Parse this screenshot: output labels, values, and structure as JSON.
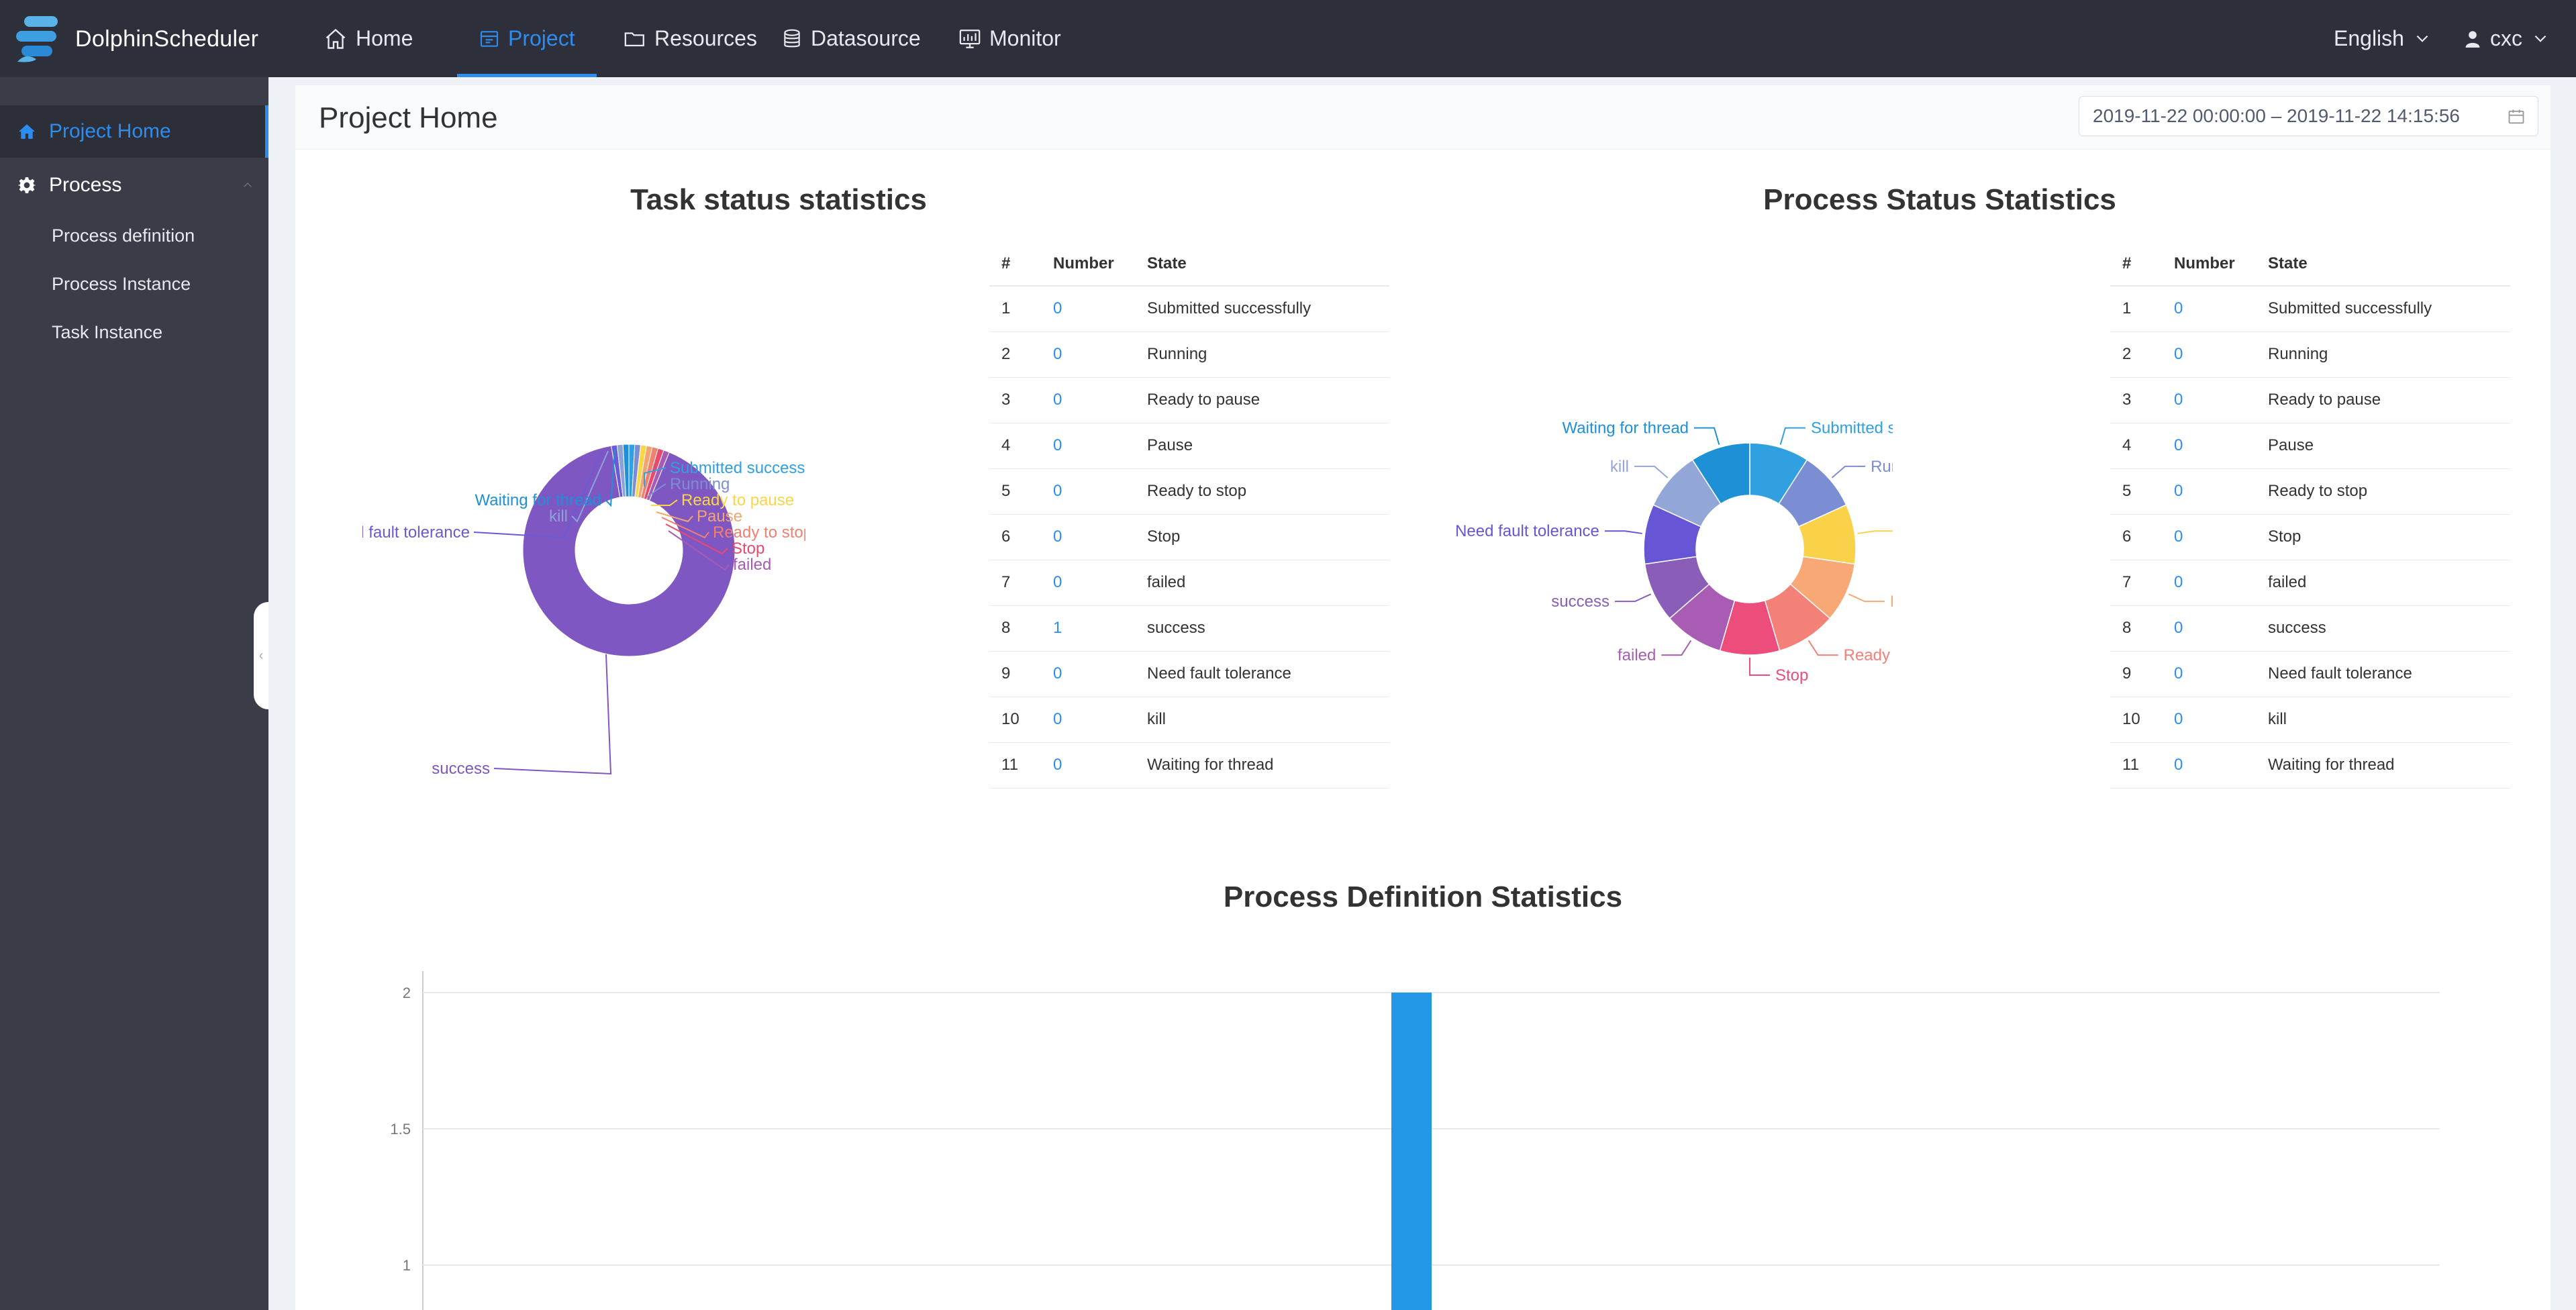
{
  "app": {
    "name": "DolphinScheduler"
  },
  "nav": {
    "items": [
      {
        "label": "Home",
        "icon": "home-icon"
      },
      {
        "label": "Project",
        "icon": "project-icon"
      },
      {
        "label": "Resources",
        "icon": "folder-icon"
      },
      {
        "label": "Datasource",
        "icon": "database-icon"
      },
      {
        "label": "Monitor",
        "icon": "monitor-icon"
      }
    ],
    "language": "English",
    "user": "cxc"
  },
  "sidebar": {
    "project_home": "Project Home",
    "process": "Process",
    "subitems": [
      "Process definition",
      "Process Instance",
      "Task Instance"
    ]
  },
  "page": {
    "title": "Project Home",
    "date_range": "2019-11-22 00:00:00 – 2019-11-22 14:15:56"
  },
  "table_headers": {
    "index": "#",
    "number": "Number",
    "state": "State"
  },
  "task_status": {
    "title": "Task status statistics",
    "rows": [
      {
        "index": "1",
        "number": "0",
        "state": "Submitted successfully"
      },
      {
        "index": "2",
        "number": "0",
        "state": "Running"
      },
      {
        "index": "3",
        "number": "0",
        "state": "Ready to pause"
      },
      {
        "index": "4",
        "number": "0",
        "state": "Pause"
      },
      {
        "index": "5",
        "number": "0",
        "state": "Ready to stop"
      },
      {
        "index": "6",
        "number": "0",
        "state": "Stop"
      },
      {
        "index": "7",
        "number": "0",
        "state": "failed"
      },
      {
        "index": "8",
        "number": "1",
        "state": "success"
      },
      {
        "index": "9",
        "number": "0",
        "state": "Need fault tolerance"
      },
      {
        "index": "10",
        "number": "0",
        "state": "kill"
      },
      {
        "index": "11",
        "number": "0",
        "state": "Waiting for thread"
      }
    ]
  },
  "process_status": {
    "title": "Process Status Statistics",
    "rows": [
      {
        "index": "1",
        "number": "0",
        "state": "Submitted successfully"
      },
      {
        "index": "2",
        "number": "0",
        "state": "Running"
      },
      {
        "index": "3",
        "number": "0",
        "state": "Ready to pause"
      },
      {
        "index": "4",
        "number": "0",
        "state": "Pause"
      },
      {
        "index": "5",
        "number": "0",
        "state": "Ready to stop"
      },
      {
        "index": "6",
        "number": "0",
        "state": "Stop"
      },
      {
        "index": "7",
        "number": "0",
        "state": "failed"
      },
      {
        "index": "8",
        "number": "0",
        "state": "success"
      },
      {
        "index": "9",
        "number": "0",
        "state": "Need fault tolerance"
      },
      {
        "index": "10",
        "number": "0",
        "state": "kill"
      },
      {
        "index": "11",
        "number": "0",
        "state": "Waiting for thread"
      }
    ]
  },
  "process_definition": {
    "title": "Process Definition Statistics"
  },
  "colors": {
    "accent": "#2d8cf0",
    "nav_bg": "#2d303a",
    "sidebar_bg": "#3a3d47"
  },
  "chart_data": [
    {
      "type": "pie",
      "title": "Task status statistics",
      "categories": [
        "Submitted successfully",
        "Running",
        "Ready to pause",
        "Pause",
        "Ready to stop",
        "Stop",
        "failed",
        "success",
        "Need fault tolerance",
        "kill",
        "Waiting for thread"
      ],
      "values": [
        0,
        0,
        0,
        0,
        0,
        0,
        0,
        1,
        0,
        0,
        0
      ],
      "colors": [
        "#30a0e0",
        "#7b8ed4",
        "#f9d648",
        "#f4a46e",
        "#f08070",
        "#e84a6e",
        "#a85ab4",
        "#7e57c2",
        "#6a5ad6",
        "#8ca3d8",
        "#1e90d6"
      ]
    },
    {
      "type": "pie",
      "title": "Process Status Statistics",
      "categories": [
        "Submitted successfully",
        "Running",
        "Ready to pause",
        "Pause",
        "Ready to stop",
        "Stop",
        "failed",
        "success",
        "Need fault tolerance",
        "kill",
        "Waiting for thread"
      ],
      "values": [
        0,
        0,
        0,
        0,
        0,
        0,
        0,
        0,
        0,
        0,
        0
      ],
      "colors": [
        "#30a0e0",
        "#7b8ed4",
        "#fad24a",
        "#f8a875",
        "#f38177",
        "#ec4d7a",
        "#a95cb3",
        "#8a5db8",
        "#6656d6",
        "#92a6d8",
        "#1e90d6"
      ]
    },
    {
      "type": "bar",
      "title": "Process Definition Statistics",
      "yticks": [
        "2",
        "1.5",
        "1"
      ],
      "ylim": [
        0,
        2
      ],
      "values": [
        2
      ],
      "color": "#2496e6"
    }
  ]
}
